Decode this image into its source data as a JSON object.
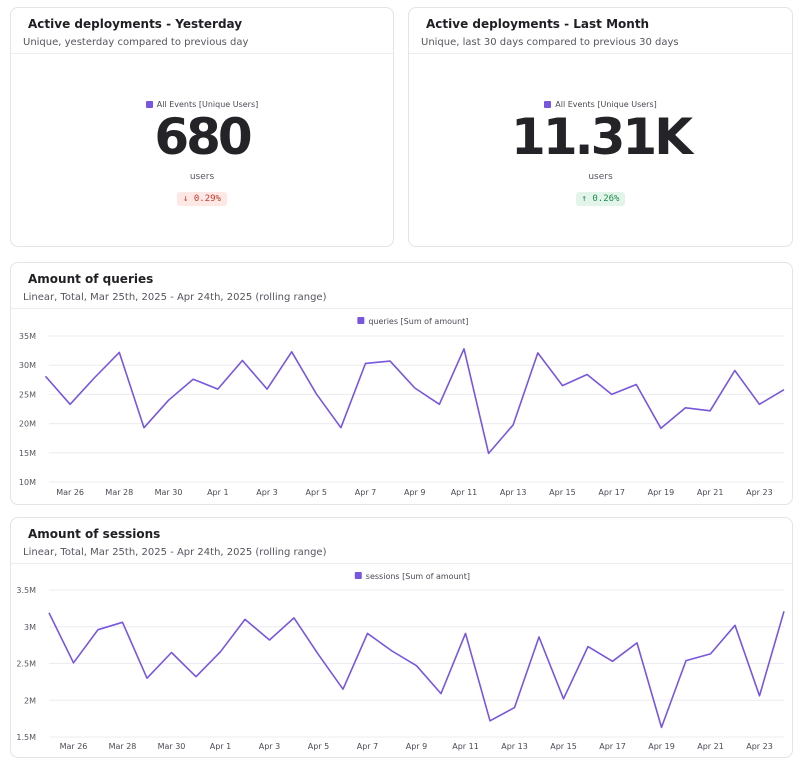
{
  "kpis": [
    {
      "title": "Active deployments - Yesterday",
      "subtitle": "Unique, yesterday compared to previous day",
      "legend": "All Events [Unique Users]",
      "value": "680",
      "unit": "users",
      "change": "↓ 0.29%",
      "direction": "down"
    },
    {
      "title": "Active deployments - Last Month",
      "subtitle": "Unique, last 30 days compared to previous 30 days",
      "legend": "All Events [Unique Users]",
      "value": "11.31K",
      "unit": "users",
      "change": "↑ 0.26%",
      "direction": "up"
    }
  ],
  "charts": [
    {
      "title": "Amount of queries",
      "subtitle": "Linear, Total, Mar 25th, 2025 - Apr 24th, 2025 (rolling range)"
    },
    {
      "title": "Amount of sessions",
      "subtitle": "Linear, Total, Mar 25th, 2025 - Apr 24th, 2025 (rolling range)"
    }
  ],
  "chart_data": [
    {
      "type": "line",
      "title": "Amount of queries",
      "series": [
        {
          "name": "queries [Sum of amount]",
          "color": "#7856e0",
          "values": [
            28.1,
            23.3,
            27.9,
            32.2,
            19.3,
            24.0,
            27.6,
            25.9,
            30.8,
            25.9,
            32.3,
            25.1,
            19.3,
            30.3,
            30.7,
            26.1,
            23.3,
            32.8,
            14.9,
            19.8,
            32.1,
            26.5,
            28.4,
            25.0,
            26.7,
            19.2,
            22.7,
            22.2,
            29.1,
            23.3,
            25.8
          ]
        }
      ],
      "x": [
        "Mar 25",
        "Mar 26",
        "Mar 27",
        "Mar 28",
        "Mar 29",
        "Mar 30",
        "Mar 31",
        "Apr 1",
        "Apr 2",
        "Apr 3",
        "Apr 4",
        "Apr 5",
        "Apr 6",
        "Apr 7",
        "Apr 8",
        "Apr 9",
        "Apr 10",
        "Apr 11",
        "Apr 12",
        "Apr 13",
        "Apr 14",
        "Apr 15",
        "Apr 16",
        "Apr 17",
        "Apr 18",
        "Apr 19",
        "Apr 20",
        "Apr 21",
        "Apr 22",
        "Apr 23",
        "Apr 24"
      ],
      "x_tick_labels": [
        "Mar 26",
        "Mar 28",
        "Mar 30",
        "Apr 1",
        "Apr 3",
        "Apr 5",
        "Apr 7",
        "Apr 9",
        "Apr 11",
        "Apr 13",
        "Apr 15",
        "Apr 17",
        "Apr 19",
        "Apr 21",
        "Apr 23"
      ],
      "y_ticks": [
        10,
        15,
        20,
        25,
        30,
        35
      ],
      "y_tick_labels": [
        "10M",
        "15M",
        "20M",
        "25M",
        "30M",
        "35M"
      ],
      "ylim": [
        10,
        35
      ],
      "y_unit": "millions",
      "grid": true,
      "legend_position": "top-center"
    },
    {
      "type": "line",
      "title": "Amount of sessions",
      "series": [
        {
          "name": "sessions [Sum of amount]",
          "color": "#7856e0",
          "values": [
            3.19,
            2.51,
            2.96,
            3.06,
            2.3,
            2.65,
            2.32,
            2.66,
            3.1,
            2.82,
            3.12,
            2.62,
            2.15,
            2.91,
            2.67,
            2.47,
            2.09,
            2.91,
            1.72,
            1.9,
            2.86,
            2.02,
            2.73,
            2.53,
            2.78,
            1.63,
            2.54,
            2.63,
            3.02,
            2.06,
            3.21
          ]
        }
      ],
      "x": [
        "Mar 25",
        "Mar 26",
        "Mar 27",
        "Mar 28",
        "Mar 29",
        "Mar 30",
        "Mar 31",
        "Apr 1",
        "Apr 2",
        "Apr 3",
        "Apr 4",
        "Apr 5",
        "Apr 6",
        "Apr 7",
        "Apr 8",
        "Apr 9",
        "Apr 10",
        "Apr 11",
        "Apr 12",
        "Apr 13",
        "Apr 14",
        "Apr 15",
        "Apr 16",
        "Apr 17",
        "Apr 18",
        "Apr 19",
        "Apr 20",
        "Apr 21",
        "Apr 22",
        "Apr 23",
        "Apr 24"
      ],
      "x_tick_labels": [
        "Mar 26",
        "Mar 28",
        "Mar 30",
        "Apr 1",
        "Apr 3",
        "Apr 5",
        "Apr 7",
        "Apr 9",
        "Apr 11",
        "Apr 13",
        "Apr 15",
        "Apr 17",
        "Apr 19",
        "Apr 21",
        "Apr 23"
      ],
      "y_ticks": [
        1.5,
        2,
        2.5,
        3,
        3.5
      ],
      "y_tick_labels": [
        "1.5M",
        "2M",
        "2.5M",
        "3M",
        "3.5M"
      ],
      "ylim": [
        1.5,
        3.5
      ],
      "y_unit": "millions",
      "grid": true,
      "legend_position": "top-center"
    }
  ]
}
